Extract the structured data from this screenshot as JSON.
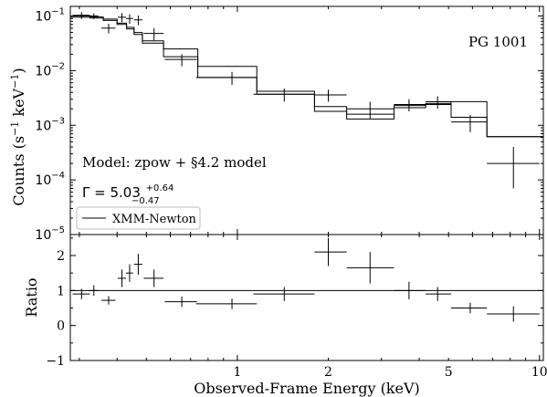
{
  "chart_data": [
    {
      "type": "line",
      "panel": "upper",
      "xscale": "log",
      "yscale": "log",
      "xlim": [
        0.28,
        10.3
      ],
      "ylim": [
        1e-05,
        0.15
      ],
      "ylabel_parts": [
        "Counts (s",
        "−1",
        " keV",
        "−1",
        ")"
      ],
      "yticks": [
        {
          "value": 0.1,
          "base": "10",
          "exp": "−1"
        },
        {
          "value": 0.01,
          "base": "10",
          "exp": "−2"
        },
        {
          "value": 0.001,
          "base": "10",
          "exp": "−3"
        },
        {
          "value": 0.0001,
          "base": "10",
          "exp": "−4"
        },
        {
          "value": 1e-05,
          "base": "10",
          "exp": "−5"
        }
      ],
      "annotations": {
        "source": "PG 1001",
        "model": "Model: zpow + §4.2 model",
        "gamma_prefix": "Γ = 5.03",
        "gamma_up": "+0.64",
        "gamma_down": "−0.47"
      },
      "legend": {
        "label": "XMM-Newton",
        "placement": "lower-left"
      },
      "series": [
        {
          "name": "XMM-Newton",
          "style": "errorbar-cross",
          "points": [
            {
              "x": 0.305,
              "xerr": [
                0.02,
                0.02
              ],
              "y": 0.103,
              "yerr": [
                0.015,
                0.015
              ]
            },
            {
              "x": 0.335,
              "xerr": [
                0.012,
                0.012
              ],
              "y": 0.1,
              "yerr": [
                0.012,
                0.012
              ]
            },
            {
              "x": 0.375,
              "xerr": [
                0.02,
                0.02
              ],
              "y": 0.06,
              "yerr": [
                0.012,
                0.012
              ]
            },
            {
              "x": 0.415,
              "xerr": [
                0.013,
                0.013
              ],
              "y": 0.095,
              "yerr": [
                0.018,
                0.018
              ]
            },
            {
              "x": 0.44,
              "xerr": [
                0.012,
                0.012
              ],
              "y": 0.09,
              "yerr": [
                0.018,
                0.018
              ]
            },
            {
              "x": 0.47,
              "xerr": [
                0.015,
                0.015
              ],
              "y": 0.085,
              "yerr": [
                0.017,
                0.017
              ]
            },
            {
              "x": 0.53,
              "xerr": [
                0.04,
                0.04
              ],
              "y": 0.048,
              "yerr": [
                0.012,
                0.012
              ]
            },
            {
              "x": 0.655,
              "xerr": [
                0.08,
                0.08
              ],
              "y": 0.016,
              "yerr": [
                0.004,
                0.004
              ]
            },
            {
              "x": 0.96,
              "xerr": [
                0.23,
                0.2
              ],
              "y": 0.0075,
              "yerr": [
                0.002,
                0.002
              ]
            },
            {
              "x": 1.43,
              "xerr": [
                0.3,
                0.37
              ],
              "y": 0.0037,
              "yerr": [
                0.001,
                0.001
              ]
            },
            {
              "x": 2.0,
              "xerr": [
                0.2,
                0.3
              ],
              "y": 0.0036,
              "yerr": [
                0.0009,
                0.0009
              ]
            },
            {
              "x": 2.75,
              "xerr": [
                0.45,
                0.55
              ],
              "y": 0.002,
              "yerr": [
                0.0007,
                0.0007
              ]
            },
            {
              "x": 3.7,
              "xerr": [
                0.4,
                0.5
              ],
              "y": 0.0024,
              "yerr": [
                0.0006,
                0.0006
              ]
            },
            {
              "x": 4.6,
              "xerr": [
                0.4,
                0.5
              ],
              "y": 0.0027,
              "yerr": [
                0.0007,
                0.0007
              ]
            },
            {
              "x": 5.9,
              "xerr": [
                0.8,
                0.8
              ],
              "y": 0.00115,
              "yerr": [
                0.0004,
                0.0004
              ]
            },
            {
              "x": 8.2,
              "xerr": [
                1.5,
                1.8
              ],
              "y": 0.0002,
              "yerr": [
                0.00013,
                0.0002
              ]
            }
          ]
        },
        {
          "name": "model",
          "style": "step",
          "bins": [
            {
              "x0": 0.28,
              "x1": 0.325,
              "y": 0.095
            },
            {
              "x0": 0.325,
              "x1": 0.36,
              "y": 0.092
            },
            {
              "x0": 0.36,
              "x1": 0.4,
              "y": 0.083
            },
            {
              "x0": 0.4,
              "x1": 0.43,
              "y": 0.07
            },
            {
              "x0": 0.43,
              "x1": 0.455,
              "y": 0.058
            },
            {
              "x0": 0.455,
              "x1": 0.485,
              "y": 0.05
            },
            {
              "x0": 0.485,
              "x1": 0.57,
              "y": 0.035
            },
            {
              "x0": 0.57,
              "x1": 0.74,
              "y": 0.025
            },
            {
              "x0": 0.74,
              "x1": 1.16,
              "y": 0.012
            },
            {
              "x0": 1.16,
              "x1": 1.8,
              "y": 0.0042
            },
            {
              "x0": 1.8,
              "x1": 2.3,
              "y": 0.0018
            },
            {
              "x0": 2.3,
              "x1": 3.3,
              "y": 0.0013
            },
            {
              "x0": 3.3,
              "x1": 4.2,
              "y": 0.0021
            },
            {
              "x0": 4.2,
              "x1": 5.1,
              "y": 0.0025
            },
            {
              "x0": 5.1,
              "x1": 6.7,
              "y": 0.0027
            },
            {
              "x0": 6.7,
              "x1": 10.3,
              "y": 0.00062
            }
          ]
        },
        {
          "name": "model-secondary",
          "style": "step",
          "bins": [
            {
              "x0": 0.28,
              "x1": 0.325,
              "y": 0.1
            },
            {
              "x0": 0.325,
              "x1": 0.36,
              "y": 0.096
            },
            {
              "x0": 0.36,
              "x1": 0.4,
              "y": 0.088
            },
            {
              "x0": 0.4,
              "x1": 0.43,
              "y": 0.074
            },
            {
              "x0": 0.43,
              "x1": 0.455,
              "y": 0.062
            },
            {
              "x0": 0.455,
              "x1": 0.485,
              "y": 0.046
            },
            {
              "x0": 0.485,
              "x1": 0.57,
              "y": 0.032
            },
            {
              "x0": 0.57,
              "x1": 0.74,
              "y": 0.018
            },
            {
              "x0": 0.74,
              "x1": 1.16,
              "y": 0.0075
            },
            {
              "x0": 1.16,
              "x1": 1.8,
              "y": 0.0037
            },
            {
              "x0": 1.8,
              "x1": 2.3,
              "y": 0.0022
            },
            {
              "x0": 2.3,
              "x1": 3.3,
              "y": 0.0016
            },
            {
              "x0": 3.3,
              "x1": 4.2,
              "y": 0.0023
            },
            {
              "x0": 4.2,
              "x1": 5.1,
              "y": 0.0024
            },
            {
              "x0": 5.1,
              "x1": 6.7,
              "y": 0.0014
            },
            {
              "x0": 6.7,
              "x1": 10.3,
              "y": 0.00062
            }
          ]
        }
      ]
    },
    {
      "type": "scatter",
      "panel": "lower",
      "xscale": "log",
      "xlim": [
        0.28,
        10.3
      ],
      "ylim": [
        -1,
        2.6
      ],
      "xlabel": "Observed-Frame Energy (keV)",
      "ylabel": "Ratio",
      "xticks": [
        {
          "value": 1,
          "label": "1"
        },
        {
          "value": 2,
          "label": "2"
        },
        {
          "value": 5,
          "label": "5"
        },
        {
          "value": 10,
          "label": "10"
        }
      ],
      "yticks": [
        {
          "value": -1,
          "label": "−1"
        },
        {
          "value": 0,
          "label": "0"
        },
        {
          "value": 1,
          "label": "1"
        },
        {
          "value": 2,
          "label": "2"
        }
      ],
      "reference_line": 1,
      "series": [
        {
          "name": "ratio",
          "style": "errorbar-cross",
          "points": [
            {
              "x": 0.305,
              "xerr": [
                0.02,
                0.02
              ],
              "y": 0.9,
              "yerr": [
                0.15,
                0.15
              ]
            },
            {
              "x": 0.335,
              "xerr": [
                0.012,
                0.012
              ],
              "y": 1.0,
              "yerr": [
                0.15,
                0.15
              ]
            },
            {
              "x": 0.375,
              "xerr": [
                0.02,
                0.02
              ],
              "y": 0.72,
              "yerr": [
                0.12,
                0.12
              ]
            },
            {
              "x": 0.415,
              "xerr": [
                0.013,
                0.013
              ],
              "y": 1.35,
              "yerr": [
                0.25,
                0.25
              ]
            },
            {
              "x": 0.44,
              "xerr": [
                0.012,
                0.012
              ],
              "y": 1.5,
              "yerr": [
                0.25,
                0.25
              ]
            },
            {
              "x": 0.47,
              "xerr": [
                0.015,
                0.015
              ],
              "y": 1.75,
              "yerr": [
                0.3,
                0.3
              ]
            },
            {
              "x": 0.53,
              "xerr": [
                0.04,
                0.04
              ],
              "y": 1.35,
              "yerr": [
                0.25,
                0.25
              ]
            },
            {
              "x": 0.655,
              "xerr": [
                0.08,
                0.08
              ],
              "y": 0.68,
              "yerr": [
                0.15,
                0.15
              ]
            },
            {
              "x": 0.96,
              "xerr": [
                0.23,
                0.2
              ],
              "y": 0.62,
              "yerr": [
                0.15,
                0.15
              ]
            },
            {
              "x": 1.43,
              "xerr": [
                0.3,
                0.37
              ],
              "y": 0.9,
              "yerr": [
                0.2,
                0.2
              ]
            },
            {
              "x": 2.0,
              "xerr": [
                0.2,
                0.3
              ],
              "y": 2.1,
              "yerr": [
                0.4,
                0.4
              ]
            },
            {
              "x": 2.75,
              "xerr": [
                0.45,
                0.55
              ],
              "y": 1.65,
              "yerr": [
                0.45,
                0.45
              ]
            },
            {
              "x": 3.7,
              "xerr": [
                0.4,
                0.5
              ],
              "y": 1.0,
              "yerr": [
                0.25,
                0.25
              ]
            },
            {
              "x": 4.6,
              "xerr": [
                0.4,
                0.5
              ],
              "y": 0.9,
              "yerr": [
                0.2,
                0.2
              ]
            },
            {
              "x": 5.9,
              "xerr": [
                0.8,
                0.8
              ],
              "y": 0.5,
              "yerr": [
                0.15,
                0.15
              ]
            },
            {
              "x": 8.2,
              "xerr": [
                1.5,
                1.8
              ],
              "y": 0.33,
              "yerr": [
                0.22,
                0.22
              ]
            }
          ]
        }
      ]
    }
  ]
}
